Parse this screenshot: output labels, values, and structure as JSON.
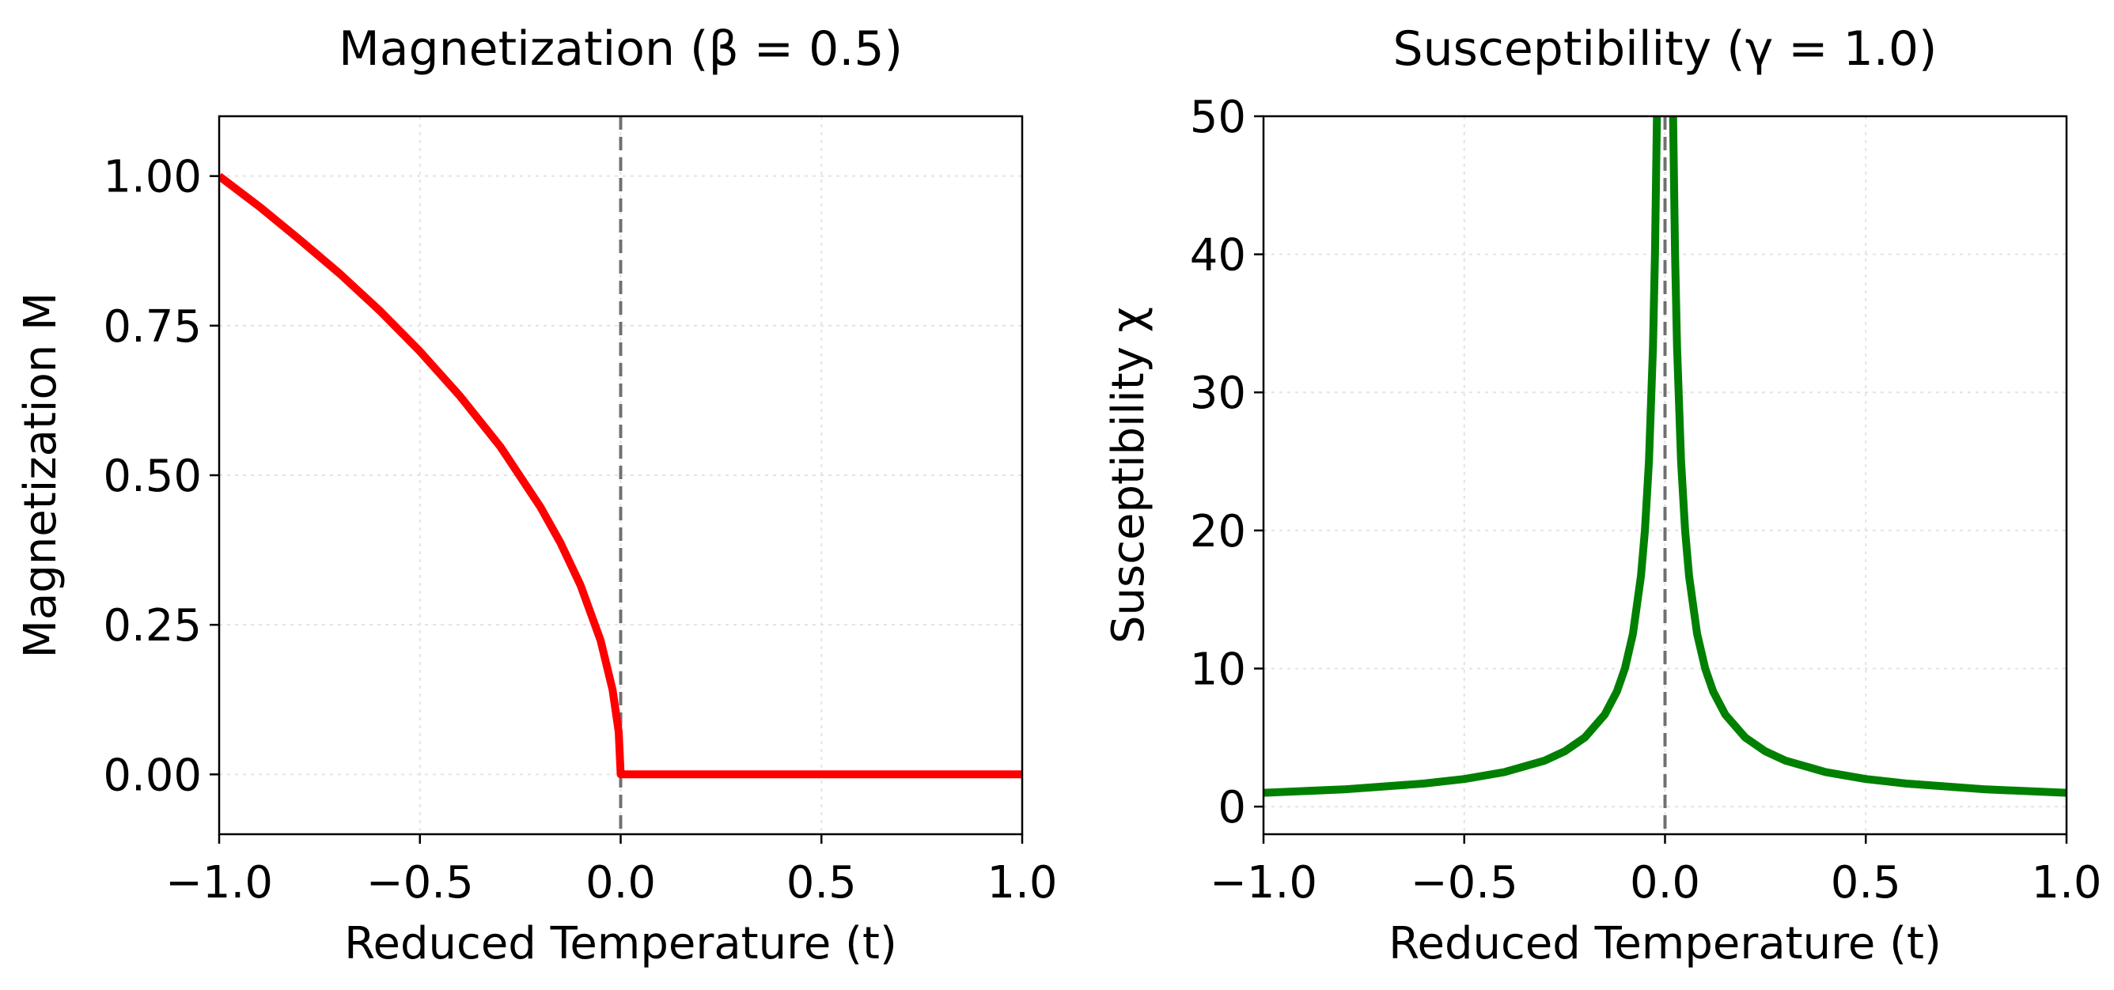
{
  "chart_data": [
    {
      "type": "line",
      "title": "Magnetization (β = 0.5)",
      "xlabel": "Reduced Temperature (t)",
      "ylabel": "Magnetization M",
      "xlim": [
        -1.0,
        1.0
      ],
      "ylim": [
        -0.1,
        1.1
      ],
      "x_ticks": [
        "−1.0",
        "−0.5",
        "0.0",
        "0.5",
        "1.0"
      ],
      "y_ticks": [
        "0.00",
        "0.25",
        "0.50",
        "0.75",
        "1.00"
      ],
      "x_tick_values": [
        -1.0,
        -0.5,
        0.0,
        0.5,
        1.0
      ],
      "y_tick_values": [
        0.0,
        0.25,
        0.5,
        0.75,
        1.0
      ],
      "grid": true,
      "critical_line_x": 0.0,
      "series": [
        {
          "color": "#ff0000",
          "x": [
            -1.0,
            -0.9,
            -0.8,
            -0.7,
            -0.6,
            -0.5,
            -0.4,
            -0.3,
            -0.2,
            -0.15,
            -0.1,
            -0.05,
            -0.02,
            -0.005,
            0.0,
            0.25,
            0.5,
            0.75,
            1.0
          ],
          "y": [
            1.0,
            0.949,
            0.894,
            0.837,
            0.775,
            0.707,
            0.632,
            0.548,
            0.447,
            0.387,
            0.316,
            0.224,
            0.141,
            0.071,
            0.0,
            0.0,
            0.0,
            0.0,
            0.0
          ]
        }
      ]
    },
    {
      "type": "line",
      "title": "Susceptibility (γ = 1.0)",
      "xlabel": "Reduced Temperature (t)",
      "ylabel": "Susceptibility χ",
      "xlim": [
        -1.0,
        1.0
      ],
      "ylim": [
        -2,
        50
      ],
      "x_ticks": [
        "−1.0",
        "−0.5",
        "0.0",
        "0.5",
        "1.0"
      ],
      "y_ticks": [
        "0",
        "10",
        "20",
        "30",
        "40",
        "50"
      ],
      "x_tick_values": [
        -1.0,
        -0.5,
        0.0,
        0.5,
        1.0
      ],
      "y_tick_values": [
        0,
        10,
        20,
        30,
        40,
        50
      ],
      "grid": true,
      "critical_line_x": 0.0,
      "series": [
        {
          "color": "#008000",
          "segments": [
            {
              "x": [
                -1.0,
                -0.8,
                -0.6,
                -0.5,
                -0.4,
                -0.3,
                -0.25,
                -0.2,
                -0.15,
                -0.12,
                -0.1,
                -0.08,
                -0.06,
                -0.05,
                -0.04,
                -0.03,
                -0.025,
                -0.02
              ],
              "y": [
                1.0,
                1.25,
                1.67,
                2.0,
                2.5,
                3.33,
                4.0,
                5.0,
                6.67,
                8.33,
                10.0,
                12.5,
                16.7,
                20.0,
                25.0,
                33.3,
                40.0,
                50.0
              ]
            },
            {
              "x": [
                0.02,
                0.025,
                0.03,
                0.04,
                0.05,
                0.06,
                0.08,
                0.1,
                0.12,
                0.15,
                0.2,
                0.25,
                0.3,
                0.4,
                0.5,
                0.6,
                0.8,
                1.0
              ],
              "y": [
                50.0,
                40.0,
                33.3,
                25.0,
                20.0,
                16.7,
                12.5,
                10.0,
                8.33,
                6.67,
                5.0,
                4.0,
                3.33,
                2.5,
                2.0,
                1.67,
                1.25,
                1.0
              ]
            }
          ]
        }
      ]
    }
  ]
}
